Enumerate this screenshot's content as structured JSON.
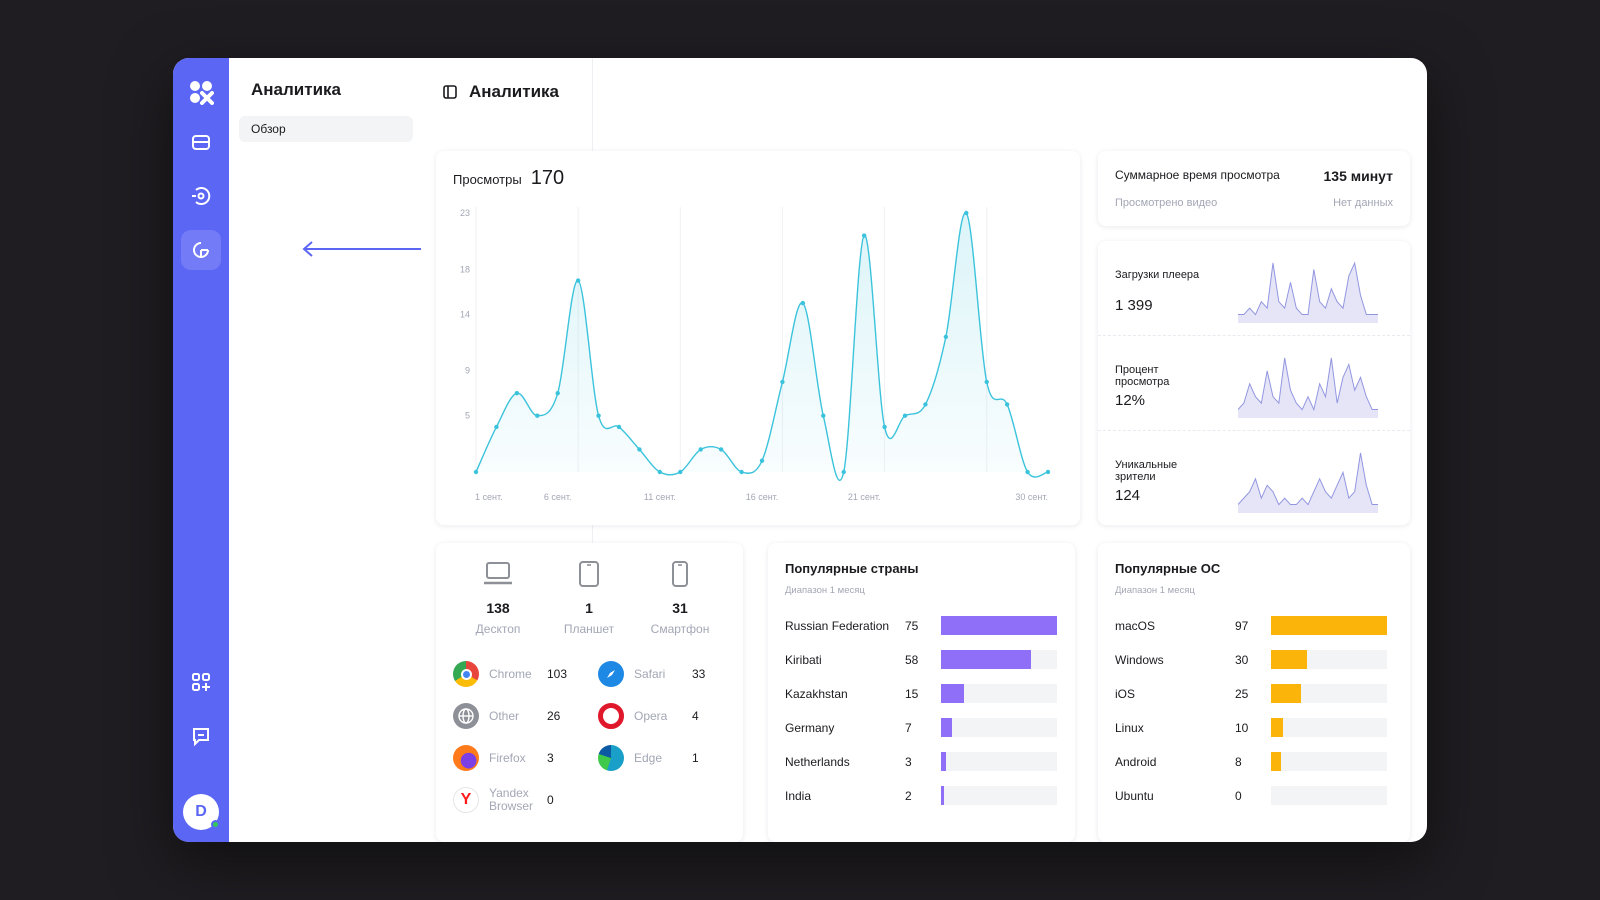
{
  "colors": {
    "accent": "#5b66f5",
    "line": "#3cc3dc",
    "bar_countries": "#8f6ff7",
    "bar_os": "#fbb40a",
    "spark": "#7b7fd9"
  },
  "subnav": {
    "title": "Аналитика",
    "item": "Обзор"
  },
  "page": {
    "title": "Аналитика"
  },
  "views": {
    "label": "Просмотры",
    "total": "170"
  },
  "chart_data": {
    "type": "line",
    "yticks": [
      23,
      18,
      14,
      9,
      5
    ],
    "xticks": [
      "1 сент.",
      "6 сент.",
      "11 сент.",
      "16 сент.",
      "21 сент.",
      "30 сент."
    ],
    "ylim": [
      0,
      23
    ],
    "values": [
      0,
      4,
      7,
      5,
      7,
      17,
      5,
      4,
      2,
      0,
      0,
      2,
      2,
      0,
      1,
      8,
      15,
      5,
      0,
      21,
      4,
      5,
      6,
      12,
      23,
      8,
      6,
      0,
      0
    ]
  },
  "summary": {
    "label": "Суммарное время просмотра",
    "value": "135 минут",
    "sub_label": "Просмотрено видео",
    "sub_value": "Нет данных"
  },
  "minis": [
    {
      "label": "Загрузки плеера",
      "value": "1 399",
      "values": [
        1,
        1,
        2,
        1,
        3,
        2,
        9,
        3,
        2,
        6,
        2,
        1,
        1,
        8,
        3,
        2,
        5,
        3,
        2,
        7,
        9,
        4,
        1,
        1,
        1
      ]
    },
    {
      "label": "Процент просмотра",
      "value": "12%",
      "values": [
        1,
        2,
        5,
        3,
        2,
        7,
        3,
        2,
        9,
        4,
        2,
        1,
        3,
        1,
        5,
        3,
        9,
        2,
        6,
        8,
        4,
        6,
        3,
        1,
        1
      ]
    },
    {
      "label": "Уникальные зрители",
      "value": "124",
      "values": [
        1,
        2,
        3,
        5,
        2,
        4,
        3,
        1,
        2,
        1,
        1,
        2,
        1,
        3,
        5,
        3,
        2,
        4,
        6,
        2,
        3,
        9,
        4,
        1,
        1
      ]
    }
  ],
  "devices": [
    {
      "icon": "laptop-icon",
      "count": "138",
      "name": "Десктоп"
    },
    {
      "icon": "tablet-icon",
      "count": "1",
      "name": "Планшет"
    },
    {
      "icon": "smartphone-icon",
      "count": "31",
      "name": "Смартфон"
    }
  ],
  "browsers": [
    {
      "icon": "chrome-icon",
      "name": "Chrome",
      "count": "103",
      "color": "#e8453c"
    },
    {
      "icon": "safari-icon",
      "name": "Safari",
      "count": "33",
      "color": "#1e88e5"
    },
    {
      "icon": "globe-icon",
      "name": "Other",
      "count": "26",
      "color": "#8e9097"
    },
    {
      "icon": "opera-icon",
      "name": "Opera",
      "count": "4",
      "color": "#e0182b"
    },
    {
      "icon": "firefox-icon",
      "name": "Firefox",
      "count": "3",
      "color": "#ff7a1a"
    },
    {
      "icon": "edge-icon",
      "name": "Edge",
      "count": "1",
      "color": "#1aa0c8"
    },
    {
      "icon": "yandex-icon",
      "name": "Yandex Browser",
      "count": "0",
      "color": "#ff1a1a"
    }
  ],
  "countries": {
    "title": "Популярные страны",
    "subtitle": "Диапазон 1 месяц",
    "rows": [
      {
        "name": "Russian Federation",
        "value": 75
      },
      {
        "name": "Kiribati",
        "value": 58
      },
      {
        "name": "Kazakhstan",
        "value": 15
      },
      {
        "name": "Germany",
        "value": 7
      },
      {
        "name": "Netherlands",
        "value": 3
      },
      {
        "name": "India",
        "value": 2
      }
    ],
    "max": 75
  },
  "os": {
    "title": "Популярные ОС",
    "subtitle": "Диапазон 1 месяц",
    "rows": [
      {
        "name": "macOS",
        "value": 97
      },
      {
        "name": "Windows",
        "value": 30
      },
      {
        "name": "iOS",
        "value": 25
      },
      {
        "name": "Linux",
        "value": 10
      },
      {
        "name": "Android",
        "value": 8
      },
      {
        "name": "Ubuntu",
        "value": 0
      }
    ],
    "max": 97
  },
  "user": {
    "initial": "D"
  }
}
